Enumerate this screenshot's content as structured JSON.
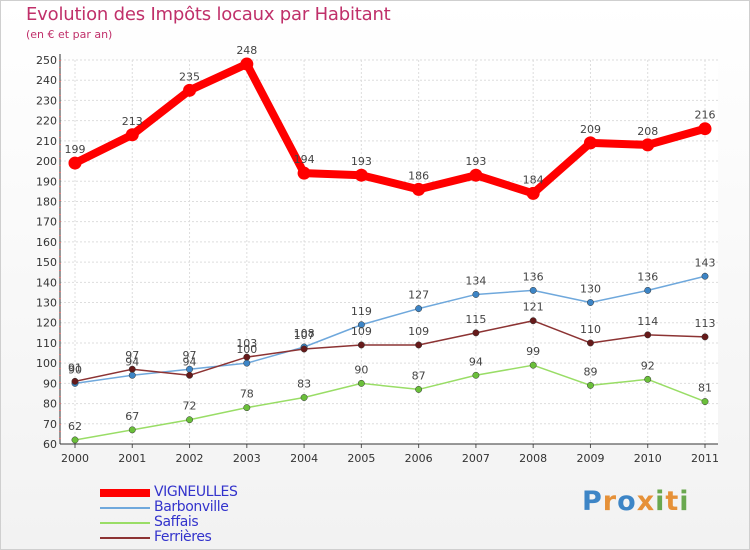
{
  "chart_data": {
    "type": "line",
    "title": "Evolution des Impôts locaux par Habitant",
    "subtitle": "(en € et par an)",
    "xlabel": "",
    "ylabel": "",
    "categories": [
      "2000",
      "2001",
      "2002",
      "2003",
      "2004",
      "2005",
      "2006",
      "2007",
      "2008",
      "2009",
      "2010",
      "2011"
    ],
    "ylim": [
      60,
      250
    ],
    "yticks": [
      60,
      70,
      80,
      90,
      100,
      110,
      120,
      130,
      140,
      150,
      160,
      170,
      180,
      190,
      200,
      210,
      220,
      230,
      240,
      250
    ],
    "grid": true,
    "legend_position": "bottom-left",
    "series": [
      {
        "name": "VIGNEULLES",
        "color": "#ff0000",
        "dot_color": "#ff0000",
        "emphasis": true,
        "values": [
          199,
          213,
          235,
          248,
          194,
          193,
          186,
          193,
          184,
          209,
          208,
          216
        ]
      },
      {
        "name": "Barbonville",
        "color": "#6fa8dc",
        "dot_color": "#3d85c6",
        "emphasis": false,
        "values": [
          90,
          94,
          97,
          100,
          108,
          119,
          127,
          134,
          136,
          130,
          136,
          143
        ]
      },
      {
        "name": "Saffais",
        "color": "#99dd66",
        "dot_color": "#6abf3a",
        "emphasis": false,
        "values": [
          62,
          67,
          72,
          78,
          83,
          90,
          87,
          94,
          99,
          89,
          92,
          81
        ]
      },
      {
        "name": "Ferrières",
        "color": "#8c3333",
        "dot_color": "#661a1a",
        "emphasis": false,
        "values": [
          91,
          97,
          94,
          103,
          107,
          109,
          109,
          115,
          121,
          110,
          114,
          113
        ]
      }
    ]
  },
  "logo": {
    "text": "Proxiti",
    "letters": [
      {
        "ch": "P",
        "color": "#3d85c6"
      },
      {
        "ch": "r",
        "color": "#e69138"
      },
      {
        "ch": "o",
        "color": "#3d85c6"
      },
      {
        "ch": "x",
        "color": "#e69138"
      },
      {
        "ch": "i",
        "color": "#6aa84f"
      },
      {
        "ch": "t",
        "color": "#e69138"
      },
      {
        "ch": "i",
        "color": "#6aa84f"
      }
    ]
  }
}
